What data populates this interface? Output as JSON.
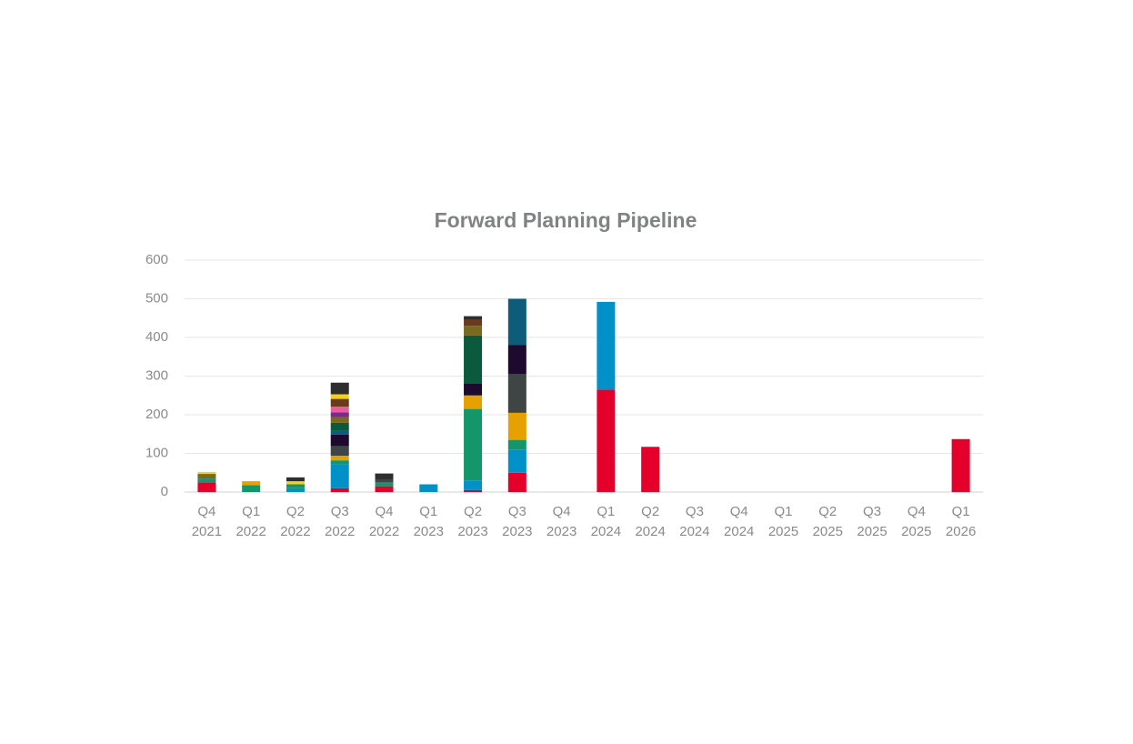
{
  "chart_data": {
    "type": "stacked_bar",
    "title": "Forward Planning Pipeline",
    "categories": [
      [
        "Q4",
        "2021"
      ],
      [
        "Q1",
        "2022"
      ],
      [
        "Q2",
        "2022"
      ],
      [
        "Q3",
        "2022"
      ],
      [
        "Q4",
        "2022"
      ],
      [
        "Q1",
        "2023"
      ],
      [
        "Q2",
        "2023"
      ],
      [
        "Q3",
        "2023"
      ],
      [
        "Q4",
        "2023"
      ],
      [
        "Q1",
        "2024"
      ],
      [
        "Q2",
        "2024"
      ],
      [
        "Q3",
        "2024"
      ],
      [
        "Q4",
        "2024"
      ],
      [
        "Q1",
        "2025"
      ],
      [
        "Q2",
        "2025"
      ],
      [
        "Q3",
        "2025"
      ],
      [
        "Q4",
        "2025"
      ],
      [
        "Q1",
        "2026"
      ]
    ],
    "series": [
      {
        "color": "#e4002b",
        "values": [
          25,
          null,
          null,
          10,
          15,
          null,
          5,
          50,
          null,
          265,
          117,
          null,
          null,
          null,
          null,
          null,
          null,
          137
        ]
      },
      {
        "color": "#0091c8",
        "values": [
          null,
          null,
          10,
          62,
          null,
          20,
          25,
          60,
          null,
          227,
          null,
          null,
          null,
          null,
          null,
          null,
          null,
          null
        ]
      },
      {
        "color": "#14966b",
        "values": [
          10,
          18,
          10,
          10,
          10,
          null,
          185,
          25,
          null,
          null,
          null,
          null,
          null,
          null,
          null,
          null,
          null,
          null
        ]
      },
      {
        "color": "#e6a100",
        "values": [
          null,
          10,
          null,
          12,
          null,
          null,
          35,
          70,
          null,
          null,
          null,
          null,
          null,
          null,
          null,
          null,
          null,
          null
        ]
      },
      {
        "color": "#3f4444",
        "values": [
          2,
          null,
          null,
          25,
          8,
          null,
          null,
          100,
          null,
          null,
          null,
          null,
          null,
          null,
          null,
          null,
          null,
          null
        ]
      },
      {
        "color": "#1d0a2e",
        "values": [
          null,
          null,
          null,
          30,
          null,
          null,
          30,
          75,
          null,
          null,
          null,
          null,
          null,
          null,
          null,
          null,
          null,
          null
        ]
      },
      {
        "color": "#0d5c7a",
        "values": [
          null,
          null,
          null,
          10,
          null,
          null,
          null,
          120,
          null,
          null,
          null,
          null,
          null,
          null,
          null,
          null,
          null,
          null
        ]
      },
      {
        "color": "#0b5a3e",
        "values": [
          null,
          null,
          null,
          20,
          null,
          null,
          125,
          null,
          null,
          null,
          null,
          null,
          null,
          null,
          null,
          null,
          null,
          null
        ]
      },
      {
        "color": "#7a6a1f",
        "values": [
          10,
          null,
          null,
          15,
          null,
          null,
          25,
          null,
          null,
          null,
          null,
          null,
          null,
          null,
          null,
          null,
          null,
          null
        ]
      },
      {
        "color": "#7b2a8c",
        "values": [
          null,
          null,
          null,
          12,
          null,
          null,
          null,
          null,
          null,
          null,
          null,
          null,
          null,
          null,
          null,
          null,
          null,
          null
        ]
      },
      {
        "color": "#e85ca0",
        "values": [
          null,
          null,
          null,
          15,
          null,
          null,
          null,
          null,
          null,
          null,
          null,
          null,
          null,
          null,
          null,
          null,
          null,
          null
        ]
      },
      {
        "color": "#6b3a1e",
        "values": [
          null,
          null,
          null,
          20,
          null,
          null,
          15,
          null,
          null,
          null,
          null,
          null,
          null,
          null,
          null,
          null,
          null,
          null
        ]
      },
      {
        "color": "#f2d21c",
        "values": [
          5,
          null,
          8,
          12,
          null,
          null,
          null,
          null,
          null,
          null,
          null,
          null,
          null,
          null,
          null,
          null,
          null,
          null
        ]
      },
      {
        "color": "#2e2e2e",
        "values": [
          null,
          null,
          10,
          30,
          15,
          null,
          10,
          null,
          null,
          null,
          null,
          null,
          null,
          null,
          null,
          null,
          null,
          null
        ]
      }
    ],
    "ylim": [
      0,
      600
    ],
    "yticks": [
      0,
      100,
      200,
      300,
      400,
      500,
      600
    ],
    "grid": true
  }
}
